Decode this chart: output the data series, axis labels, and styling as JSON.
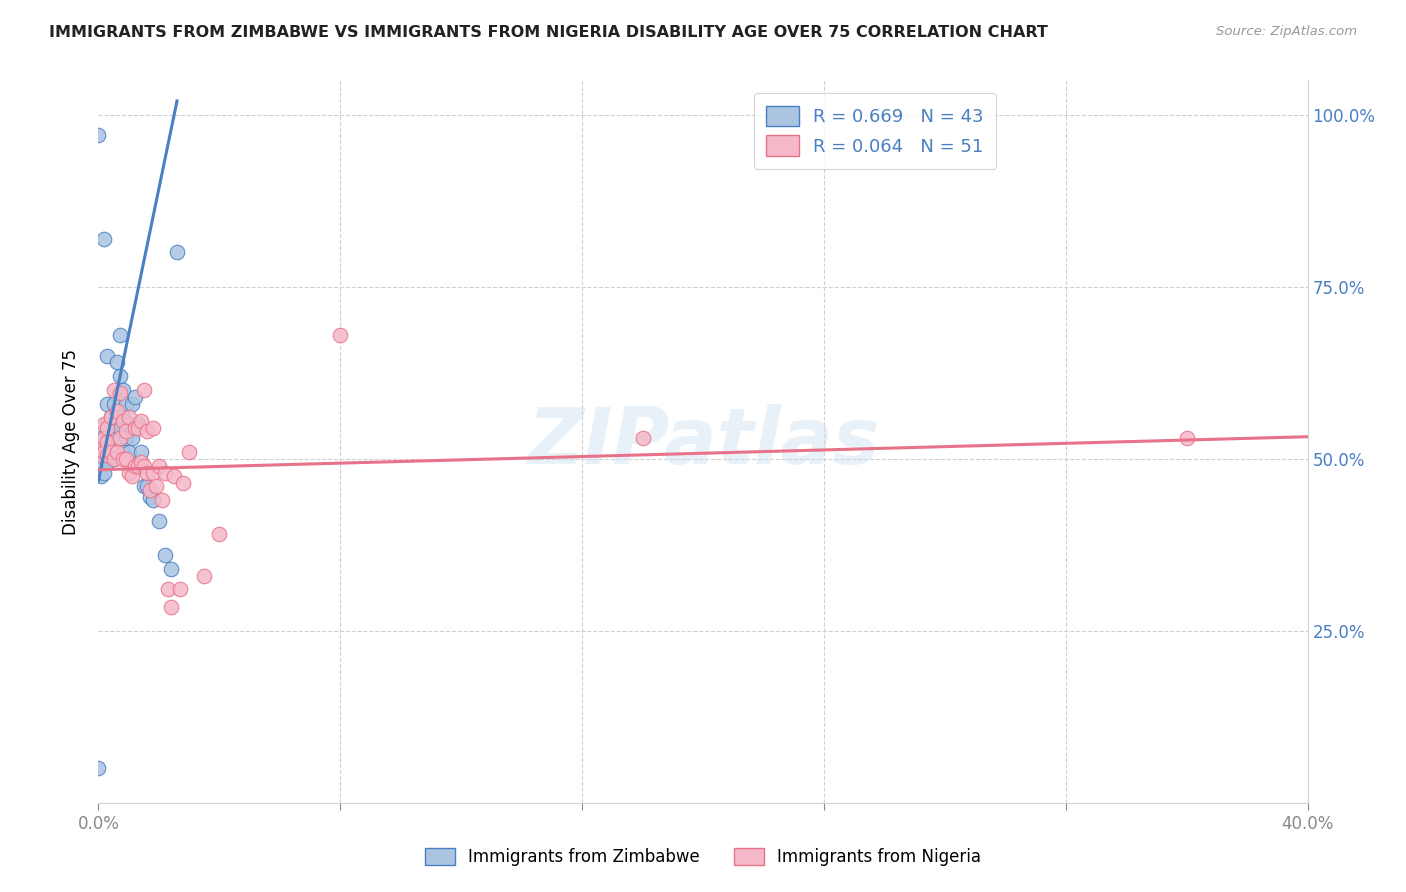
{
  "title": "IMMIGRANTS FROM ZIMBABWE VS IMMIGRANTS FROM NIGERIA DISABILITY AGE OVER 75 CORRELATION CHART",
  "source": "Source: ZipAtlas.com",
  "ylabel": "Disability Age Over 75",
  "xlim": [
    0.0,
    0.4
  ],
  "ylim": [
    0.0,
    1.05
  ],
  "legend_zim": "R = 0.669   N = 43",
  "legend_nig": "R = 0.064   N = 51",
  "zim_color": "#aac4e2",
  "nig_color": "#f5b8c8",
  "zim_line_color": "#4a7fc1",
  "nig_line_color": "#e8728a",
  "watermark": "ZIPatlas",
  "zim_scatter_x": [
    0.0,
    0.001,
    0.001,
    0.001,
    0.001,
    0.002,
    0.002,
    0.002,
    0.003,
    0.003,
    0.003,
    0.003,
    0.004,
    0.004,
    0.005,
    0.005,
    0.005,
    0.006,
    0.006,
    0.007,
    0.007,
    0.007,
    0.008,
    0.008,
    0.008,
    0.009,
    0.009,
    0.01,
    0.01,
    0.011,
    0.011,
    0.012,
    0.013,
    0.014,
    0.015,
    0.016,
    0.017,
    0.018,
    0.02,
    0.022,
    0.024,
    0.0,
    0.026
  ],
  "zim_scatter_y": [
    0.05,
    0.475,
    0.495,
    0.51,
    0.53,
    0.48,
    0.505,
    0.82,
    0.495,
    0.55,
    0.58,
    0.65,
    0.515,
    0.56,
    0.5,
    0.54,
    0.58,
    0.53,
    0.64,
    0.545,
    0.62,
    0.68,
    0.51,
    0.56,
    0.6,
    0.53,
    0.58,
    0.51,
    0.55,
    0.53,
    0.58,
    0.59,
    0.55,
    0.51,
    0.46,
    0.46,
    0.445,
    0.44,
    0.41,
    0.36,
    0.34,
    0.97,
    0.8
  ],
  "nig_scatter_x": [
    0.001,
    0.001,
    0.002,
    0.002,
    0.002,
    0.003,
    0.003,
    0.003,
    0.004,
    0.004,
    0.005,
    0.005,
    0.006,
    0.006,
    0.007,
    0.007,
    0.008,
    0.008,
    0.009,
    0.009,
    0.01,
    0.01,
    0.011,
    0.012,
    0.012,
    0.013,
    0.013,
    0.014,
    0.014,
    0.015,
    0.015,
    0.016,
    0.016,
    0.017,
    0.018,
    0.018,
    0.019,
    0.02,
    0.021,
    0.022,
    0.023,
    0.024,
    0.025,
    0.027,
    0.028,
    0.03,
    0.035,
    0.04,
    0.18,
    0.36,
    0.08
  ],
  "nig_scatter_y": [
    0.505,
    0.52,
    0.51,
    0.53,
    0.55,
    0.505,
    0.525,
    0.545,
    0.51,
    0.56,
    0.5,
    0.6,
    0.51,
    0.57,
    0.53,
    0.595,
    0.5,
    0.555,
    0.5,
    0.54,
    0.48,
    0.56,
    0.475,
    0.49,
    0.545,
    0.49,
    0.545,
    0.495,
    0.555,
    0.49,
    0.6,
    0.48,
    0.54,
    0.455,
    0.48,
    0.545,
    0.46,
    0.49,
    0.44,
    0.48,
    0.31,
    0.285,
    0.475,
    0.31,
    0.465,
    0.51,
    0.33,
    0.39,
    0.53,
    0.53,
    0.68
  ],
  "zim_regline_x": [
    0.0,
    0.026
  ],
  "zim_regline_y": [
    0.468,
    1.02
  ],
  "nig_regline_x": [
    0.0,
    0.4
  ],
  "nig_regline_y": [
    0.484,
    0.532
  ]
}
